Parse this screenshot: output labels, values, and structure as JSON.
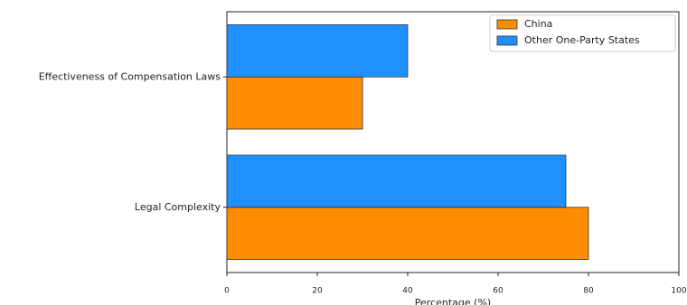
{
  "chart_data": {
    "type": "barh",
    "xlabel": "Percentage (%)",
    "categories": [
      "Legal Complexity",
      "Effectiveness of Compensation Laws"
    ],
    "series": [
      {
        "name": "China",
        "color": "#ff8c00",
        "values": [
          80,
          30
        ]
      },
      {
        "name": "Other One-Party States",
        "color": "#1e90ff",
        "values": [
          75,
          40
        ]
      }
    ],
    "xlim": [
      0,
      100
    ],
    "xticks": [
      0,
      20,
      40,
      60,
      80,
      100
    ],
    "legend": "upper right"
  }
}
